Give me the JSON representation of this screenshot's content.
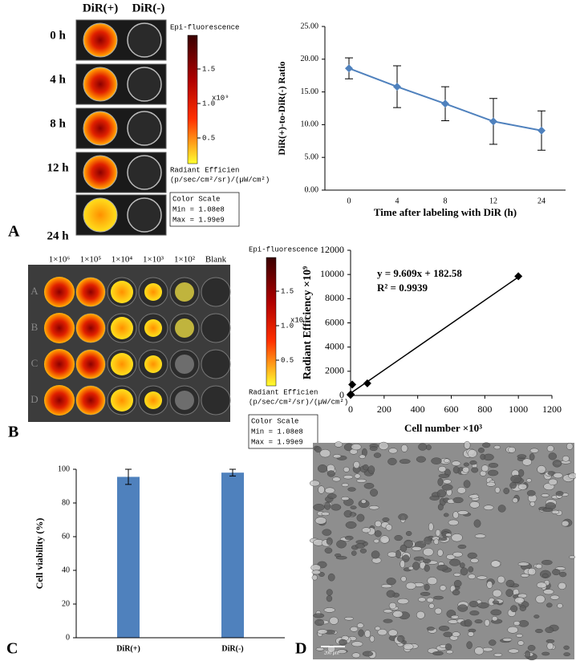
{
  "chart_data": [
    {
      "type": "line",
      "x_label": "Time after labeling with DiR (h)",
      "y_label": "DiR(+)-to-DiR(-) Ratio",
      "categories": [
        "0",
        "4",
        "8",
        "12",
        "24"
      ],
      "series": [
        {
          "values": [
            18.6,
            15.8,
            13.2,
            10.5,
            9.1
          ],
          "errors": [
            1.6,
            3.2,
            2.6,
            3.5,
            3.0
          ],
          "color": "#4f81bd"
        }
      ],
      "ylim": [
        0,
        25
      ],
      "yticks": [
        {
          "value": 0,
          "label": "0.00"
        },
        {
          "value": 5,
          "label": "5.00"
        },
        {
          "value": 10,
          "label": "10.00"
        },
        {
          "value": 15,
          "label": "15.00"
        },
        {
          "value": 20,
          "label": "20.00"
        },
        {
          "value": 25,
          "label": "25.00"
        }
      ]
    },
    {
      "type": "scatter",
      "x_label": "Cell number ×10³",
      "y_label": "Radiant Efficiency ×10⁹",
      "x": [
        0.1,
        1,
        10,
        100,
        1000
      ],
      "values": [
        50,
        100,
        900,
        1000,
        9850
      ],
      "color": "#000000",
      "trendline": {
        "x": [
          0,
          1000
        ],
        "values": [
          180,
          9790
        ]
      },
      "annotations": [
        "y = 9.609x + 182.58",
        "R² = 0.9939"
      ],
      "xlim": [
        0,
        1200
      ],
      "xticks": [
        0,
        200,
        400,
        600,
        800,
        1000,
        1200
      ],
      "ylim": [
        0,
        12000
      ],
      "yticks": [
        0,
        2000,
        4000,
        6000,
        8000,
        10000,
        12000
      ]
    },
    {
      "type": "bar",
      "y_label": "Cell viability (%)",
      "categories": [
        "DiR(+)",
        "DiR(-)"
      ],
      "values": [
        95.5,
        98
      ],
      "errors": [
        4.5,
        2
      ],
      "color": "#4f81bd",
      "ylim": [
        0,
        100
      ],
      "yticks": [
        0,
        20,
        40,
        60,
        80,
        100
      ]
    }
  ],
  "panel_labels": [
    "A",
    "B",
    "C",
    "D"
  ],
  "image_a": {
    "columns": [
      "DiR(+)",
      "DiR(-)"
    ],
    "rows": [
      "0 h",
      "4 h",
      "8 h",
      "12 h",
      "24 h"
    ]
  },
  "image_b": {
    "columns": [
      "1×10⁶",
      "1×10⁵",
      "1×10⁴",
      "1×10³",
      "1×10²",
      "Blank"
    ],
    "rows": [
      "A",
      "B",
      "C",
      "D"
    ]
  },
  "color_scale": {
    "title": "Epi-fluorescence",
    "ticks": [
      "1.5",
      "1.0",
      "0.5"
    ],
    "unit": "x10⁹",
    "label": "Radiant Efficien",
    "units": "(p/sec/cm²/sr)/(µW/cm²)",
    "box_title": "Color Scale",
    "min": "Min = 1.08e8",
    "max": "Max = 1.99e9"
  },
  "scale_bar": "200 µm"
}
